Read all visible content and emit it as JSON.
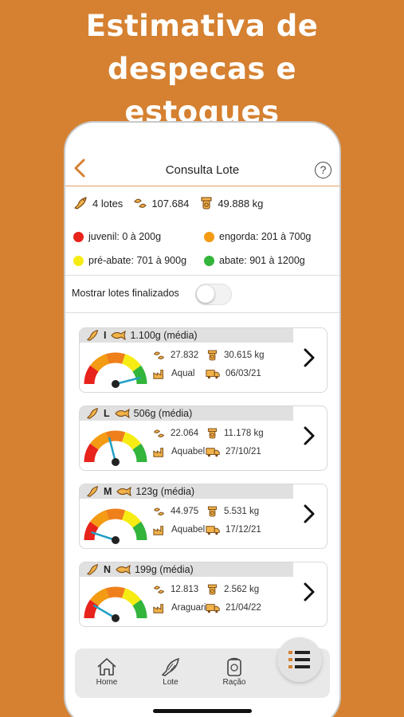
{
  "headline": [
    "Estimativa de",
    "despecas e",
    "estoques"
  ],
  "nav": {
    "title": "Consulta Lote",
    "back_icon": "chevron-left-icon",
    "help_label": "?"
  },
  "summary": {
    "lotes": "4 lotes",
    "peixes": "107.684",
    "peso": "49.888 kg"
  },
  "legend": [
    {
      "label": "juvenil: 0 à 200g",
      "color": "#E8231B"
    },
    {
      "label": "engorda: 201 à 700g",
      "color": "#F39B13"
    },
    {
      "label": "pré-abate: 701 à 900g",
      "color": "#F6EC14"
    },
    {
      "label": "abate: 901 à 1200g",
      "color": "#33B43B"
    }
  ],
  "toggle": {
    "label": "Mostrar lotes finalizados",
    "on": false
  },
  "lots": [
    {
      "letter": "I",
      "avg": "1.100g (média)",
      "count": "27.832",
      "weight": "30.615 kg",
      "supplier": "Aqual",
      "date": "06/03/21",
      "gauge_fraction": 0.92
    },
    {
      "letter": "L",
      "avg": "506g (média)",
      "count": "22.064",
      "weight": "11.178 kg",
      "supplier": "Aquabel",
      "date": "27/10/21",
      "gauge_fraction": 0.42
    },
    {
      "letter": "M",
      "avg": "123g (média)",
      "count": "44.975",
      "weight": "5.531 kg",
      "supplier": "Aquabel",
      "date": "17/12/21",
      "gauge_fraction": 0.1
    },
    {
      "letter": "N",
      "avg": "199g (média)",
      "count": "12.813",
      "weight": "2.562 kg",
      "supplier": "Araguari",
      "date": "21/04/22",
      "gauge_fraction": 0.17
    }
  ],
  "tabs": [
    {
      "label": "Home",
      "icon": "home-icon"
    },
    {
      "label": "Lote",
      "icon": "fish-icon"
    },
    {
      "label": "Ração",
      "icon": "feed-bag-icon"
    }
  ],
  "fab": {
    "icon": "menu-list-icon"
  },
  "colors": {
    "accent": "#D58131",
    "juvenil": "#E8231B",
    "engorda": "#F39B13",
    "pre_abate": "#F6EC14",
    "abate": "#33B43B",
    "needle": "#1F9FC5"
  }
}
